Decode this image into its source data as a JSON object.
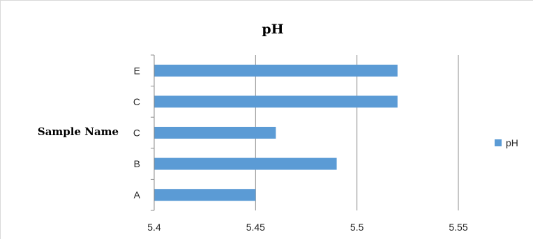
{
  "chart_data": {
    "type": "bar",
    "orientation": "horizontal",
    "title": "pH",
    "xlabel": "",
    "ylabel": "Sample Name",
    "categories": [
      "E",
      "C",
      "C",
      "B",
      "A"
    ],
    "series": [
      {
        "name": "pH",
        "values": [
          5.52,
          5.52,
          5.46,
          5.49,
          5.45
        ]
      }
    ],
    "xlim": [
      5.4,
      5.55
    ],
    "xticks": [
      5.4,
      5.45,
      5.5,
      5.55
    ],
    "xtick_labels": [
      "5.4",
      "5.45",
      "5.5",
      "5.55"
    ],
    "grid": "vertical",
    "legend_position": "right",
    "bar_color": "#5b9bd5",
    "grid_color": "#8c8c8c"
  }
}
